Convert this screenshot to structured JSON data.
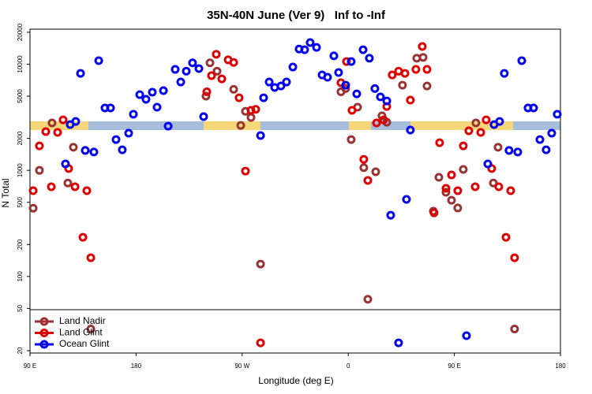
{
  "chart_data": {
    "type": "scatter",
    "title": "35N-40N June (Ver 9)   Inf to -Inf",
    "x_label": "Longitude (deg E)",
    "y_label": "N Total",
    "log_y": true,
    "legend": "lower left",
    "xlim": [
      90,
      540
    ],
    "ylim": [
      19,
      21400
    ],
    "xticks": [
      {
        "value": 90,
        "label": "90 E"
      },
      {
        "value": 180,
        "label": "180"
      },
      {
        "value": 270,
        "label": "90 W"
      },
      {
        "value": 360,
        "label": "0"
      },
      {
        "value": 450,
        "label": "90 E"
      },
      {
        "value": 540,
        "label": "180"
      }
    ],
    "yticks": [
      20,
      50,
      100,
      200,
      500,
      1000,
      2000,
      5000,
      10000,
      20000
    ],
    "series": [
      {
        "name": "Land Nadir",
        "color": "#993333",
        "x": [
          92.7,
          98,
          108.7,
          126.8,
          122.1,
          141.6,
          242.7,
          248.7,
          239.3,
          262.8,
          268.8,
          272.8,
          277.5,
          285.6,
          353.8,
          357.8,
          362.5,
          367.9,
          373.2,
          376.6,
          383.3,
          388.6,
          392.7,
          406,
          418.1,
          423.5,
          426.8,
          432.2,
          436.9,
          442.9,
          447.6,
          452.9,
          457.6,
          468.3,
          483.1,
          487.1,
          501.1
        ],
        "values": [
          440,
          1000,
          2800,
          1650,
          760,
          32,
          10300,
          8600,
          5000,
          5800,
          2650,
          3600,
          3150,
          131,
          5500,
          5900,
          1950,
          3940,
          1060,
          61,
          970,
          3260,
          2840,
          6350,
          11400,
          11600,
          6240,
          412,
          860,
          621,
          523,
          442,
          1020,
          2800,
          760,
          1650,
          32
        ]
      },
      {
        "name": "Land Glint",
        "color": "#dd0000",
        "x": [
          92.7,
          98,
          103.4,
          108.1,
          113.4,
          118.1,
          122.8,
          128.2,
          134.9,
          138.2,
          141.6,
          240,
          244,
          248,
          252.7,
          258.1,
          262.8,
          267.4,
          272.8,
          277.5,
          281.5,
          285.6,
          353.8,
          358.5,
          363.2,
          373.2,
          376.6,
          384,
          390,
          392.7,
          397.3,
          402.7,
          408.1,
          412.7,
          417.4,
          422.8,
          426.8,
          432.8,
          437.5,
          442.9,
          447.6,
          452.9,
          457.6,
          462.3,
          467.7,
          472.4,
          477,
          481.7,
          487.7,
          493.8,
          497.8,
          501.1
        ],
        "values": [
          643,
          1700,
          2320,
          700,
          2280,
          2990,
          1040,
          700,
          234,
          643,
          150,
          5500,
          7800,
          12400,
          7280,
          11000,
          10400,
          4830,
          985,
          3680,
          3760,
          23.7,
          6690,
          10600,
          3680,
          1270,
          803,
          2800,
          2990,
          4000,
          7930,
          8600,
          8200,
          4590,
          8940,
          14700,
          8940,
          398,
          1820,
          677,
          905,
          643,
          1700,
          2360,
          700,
          2280,
          2990,
          1040,
          700,
          234,
          643,
          150
        ]
      },
      {
        "name": "Ocean Glint",
        "color": "#0000ee",
        "x": [
          120.1,
          124.1,
          128.8,
          132.9,
          136.9,
          144.2,
          148.3,
          153.6,
          158.3,
          163,
          168.3,
          173.7,
          177.7,
          183.1,
          188.4,
          193.8,
          197.8,
          203.2,
          207.2,
          213.2,
          217.9,
          222.6,
          227.9,
          233.3,
          237.3,
          285.6,
          288.2,
          292.9,
          297.6,
          302.9,
          307.6,
          313,
          318.3,
          323,
          327.7,
          333.1,
          337.8,
          342.4,
          347.8,
          351.8,
          357.8,
          362.5,
          367.2,
          372.6,
          377.9,
          382.6,
          387.3,
          392.7,
          396,
          402.7,
          409.4,
          412.7,
          460.3,
          478.4,
          483.7,
          488.4,
          492.4,
          496.4,
          503.8,
          507.2,
          512.5,
          517.2,
          522.6,
          527.9,
          532.6,
          537.3
        ],
        "values": [
          1150,
          2700,
          2890,
          8200,
          1540,
          1490,
          10800,
          3870,
          3870,
          1950,
          1560,
          2240,
          3380,
          5170,
          4670,
          5450,
          3940,
          5640,
          2610,
          8940,
          6800,
          8600,
          10300,
          9100,
          3210,
          2130,
          4830,
          6800,
          6040,
          6240,
          6800,
          9410,
          13900,
          13700,
          16000,
          14400,
          7930,
          7540,
          12000,
          8350,
          6350,
          10600,
          5260,
          13700,
          11400,
          5900,
          4920,
          4510,
          378,
          23.7,
          533,
          2400,
          27.7,
          1150,
          2700,
          2890,
          8200,
          1540,
          1490,
          10800,
          3870,
          3870,
          1950,
          1560,
          2240,
          3380
        ]
      }
    ]
  }
}
